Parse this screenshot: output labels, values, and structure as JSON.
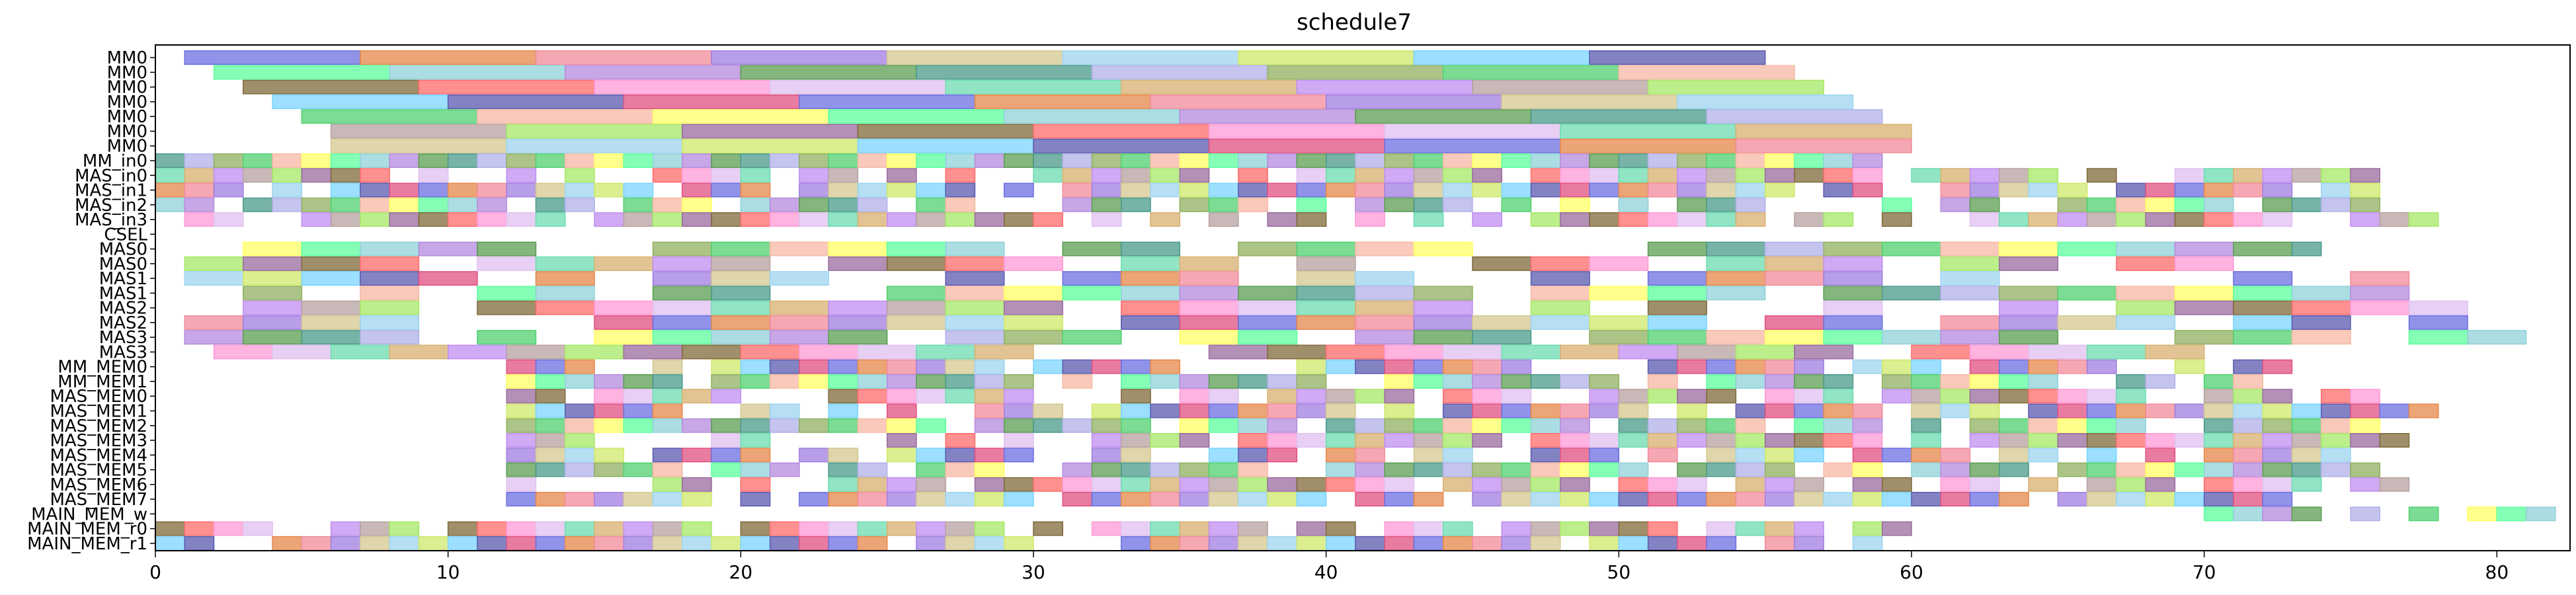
{
  "chart_data": {
    "type": "gantt",
    "title": "schedule7",
    "xlabel": "",
    "ylabel": "",
    "xlim": [
      0,
      82.5
    ],
    "xticks": [
      0,
      10,
      20,
      30,
      40,
      50,
      60,
      70,
      80
    ],
    "grid": false,
    "legend": "none",
    "rows": [
      "MM0",
      "MM0",
      "MM0",
      "MM0",
      "MM0",
      "MM0",
      "MM0",
      "MM_in0",
      "MAS_in0",
      "MAS_in1",
      "MAS_in2",
      "MAS_in3",
      "CSEL",
      "MAS0",
      "MAS0",
      "MAS1",
      "MAS1",
      "MAS2",
      "MAS2",
      "MAS3",
      "MAS3",
      "MM_MEM0",
      "MM_MEM1",
      "MAS_MEM0",
      "MAS_MEM1",
      "MAS_MEM2",
      "MAS_MEM3",
      "MAS_MEM4",
      "MAS_MEM5",
      "MAS_MEM6",
      "MAS_MEM7",
      "MAIN_MEM_w",
      "MAIN_MEM_r0",
      "MAIN_MEM_r1"
    ],
    "row_spans": [
      {
        "row": 0,
        "start": 1,
        "end": 55,
        "step": 6
      },
      {
        "row": 1,
        "start": 2,
        "end": 56,
        "step": 6
      },
      {
        "row": 2,
        "start": 3,
        "end": 57,
        "step": 6
      },
      {
        "row": 3,
        "start": 4,
        "end": 58,
        "step": 6
      },
      {
        "row": 4,
        "start": 5,
        "end": 59,
        "step": 6
      },
      {
        "row": 5,
        "start": 6,
        "end": 60,
        "step": 6
      },
      {
        "row": 6,
        "start": 6,
        "end": 60,
        "step": 6
      },
      {
        "row": 7,
        "start": 0,
        "end": 59,
        "step": 1
      },
      {
        "row": 8,
        "start": 0,
        "end": 76,
        "step": 1
      },
      {
        "row": 9,
        "start": 0,
        "end": 76,
        "step": 1
      },
      {
        "row": 10,
        "start": 0,
        "end": 76,
        "step": 1
      },
      {
        "row": 11,
        "start": 0,
        "end": 79,
        "step": 1
      },
      {
        "row": 13,
        "start": 1,
        "end": 74,
        "step": 2
      },
      {
        "row": 14,
        "start": 1,
        "end": 75,
        "step": 2
      },
      {
        "row": 15,
        "start": 1,
        "end": 77,
        "step": 2
      },
      {
        "row": 16,
        "start": 1,
        "end": 77,
        "step": 2
      },
      {
        "row": 17,
        "start": 1,
        "end": 79,
        "step": 2
      },
      {
        "row": 18,
        "start": 1,
        "end": 80,
        "step": 2
      },
      {
        "row": 19,
        "start": 1,
        "end": 81,
        "step": 2
      },
      {
        "row": 20,
        "start": 2,
        "end": 74,
        "step": 2
      },
      {
        "row": 21,
        "start": 12,
        "end": 73,
        "step": 1
      },
      {
        "row": 22,
        "start": 12,
        "end": 73,
        "step": 1
      },
      {
        "row": 23,
        "start": 12,
        "end": 77,
        "step": 1
      },
      {
        "row": 24,
        "start": 12,
        "end": 78,
        "step": 1
      },
      {
        "row": 25,
        "start": 12,
        "end": 76,
        "step": 1
      },
      {
        "row": 26,
        "start": 12,
        "end": 77,
        "step": 1
      },
      {
        "row": 27,
        "start": 12,
        "end": 75,
        "step": 1
      },
      {
        "row": 28,
        "start": 12,
        "end": 76,
        "step": 1
      },
      {
        "row": 29,
        "start": 12,
        "end": 77,
        "step": 1
      },
      {
        "row": 30,
        "start": 12,
        "end": 74,
        "step": 1
      },
      {
        "row": 31,
        "start": 70,
        "end": 82,
        "step": 1
      },
      {
        "row": 32,
        "start": 0,
        "end": 60,
        "step": 1
      },
      {
        "row": 33,
        "start": 0,
        "end": 60,
        "step": 1
      }
    ],
    "palette": [
      "#6b6fe0",
      "#f7b8a4",
      "#c08ef0",
      "#e6874a",
      "#ffff66",
      "#b7a0a0",
      "#f28b9a",
      "#5dff9e",
      "#a5e866",
      "#a07ee0",
      "#8fd2d8",
      "#9a6b9e",
      "#d4c890",
      "#b58add",
      "#7f6a3a",
      "#9dd4f0",
      "#5b9d52",
      "#ff6b6b",
      "#cfe86b",
      "#4a9a8a",
      "#ff9ad6",
      "#7bd4ff",
      "#b0b0e8",
      "#e0c0f0",
      "#5a5ab0",
      "#90b060",
      "#6cdcb0",
      "#e05080",
      "#50d070",
      "#d8b070"
    ]
  }
}
